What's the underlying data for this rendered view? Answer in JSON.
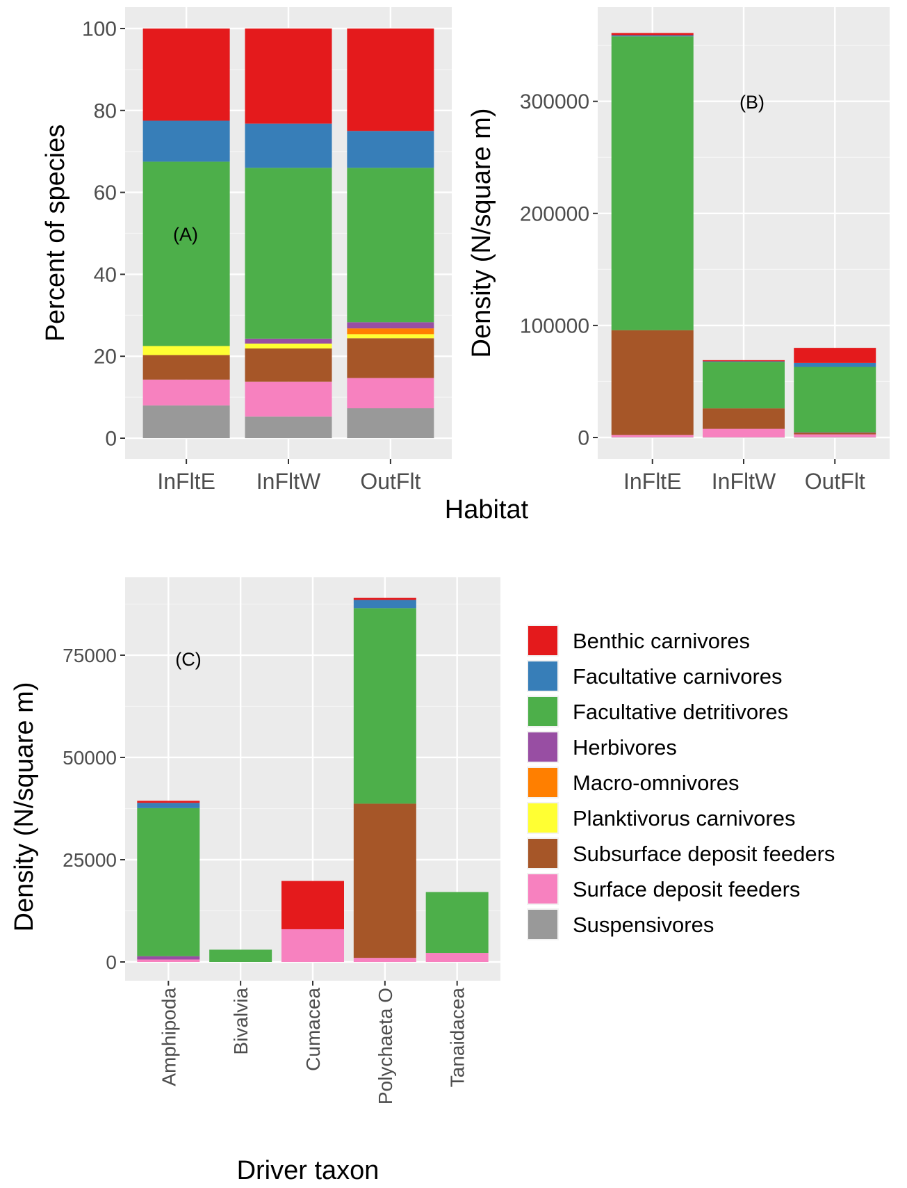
{
  "figure": {
    "habitat_label": "Habitat"
  },
  "colors": {
    "Benthic carnivores": "#e41a1c",
    "Facultative carnivores": "#377eb8",
    "Facultative detritivores": "#4daf4a",
    "Herbivores": "#984ea3",
    "Macro-omnivores": "#ff7f00",
    "Planktivorus carnivores": "#ffff33",
    "Subsurface deposit feeders": "#a65628",
    "Surface deposit feeders": "#f781bf",
    "Suspensivores": "#999999"
  },
  "legend": {
    "entries": [
      "Benthic carnivores",
      "Facultative carnivores",
      "Facultative detritivores",
      "Herbivores",
      "Macro-omnivores",
      "Planktivorus carnivores",
      "Subsurface deposit feeders",
      "Surface deposit feeders",
      "Suspensivores"
    ]
  },
  "chart_data": [
    {
      "id": "A",
      "panel_label": "(A)",
      "type": "bar",
      "stacked": true,
      "title": "",
      "xlabel": "Habitat",
      "ylabel": "Percent of species",
      "ylim": [
        0,
        100
      ],
      "yticks": [
        0,
        20,
        40,
        60,
        80,
        100
      ],
      "yticklabels": [
        "0",
        "20",
        "40",
        "60",
        "80",
        "100"
      ],
      "categories": [
        "InFltE",
        "InFltW",
        "OutFlt"
      ],
      "series": [
        {
          "name": "Suspensivores",
          "values": [
            8.0,
            5.3,
            7.3
          ]
        },
        {
          "name": "Surface deposit feeders",
          "values": [
            6.3,
            8.5,
            7.4
          ]
        },
        {
          "name": "Subsurface deposit feeders",
          "values": [
            6.0,
            8.1,
            9.7
          ]
        },
        {
          "name": "Planktivorus carnivores",
          "values": [
            2.2,
            1.2,
            1.0
          ]
        },
        {
          "name": "Macro-omnivores",
          "values": [
            0,
            0,
            1.4
          ]
        },
        {
          "name": "Herbivores",
          "values": [
            0,
            1.2,
            1.5
          ]
        },
        {
          "name": "Facultative detritivores",
          "values": [
            45.0,
            41.7,
            37.7
          ]
        },
        {
          "name": "Facultative carnivores",
          "values": [
            10.0,
            10.8,
            9.0
          ]
        },
        {
          "name": "Benthic carnivores",
          "values": [
            22.5,
            23.2,
            25.0
          ]
        }
      ]
    },
    {
      "id": "B",
      "panel_label": "(B)",
      "type": "bar",
      "stacked": true,
      "title": "",
      "xlabel": "Habitat",
      "ylabel": "Density (N/square m)",
      "ylim": [
        0,
        365000
      ],
      "yticks": [
        0,
        100000,
        200000,
        300000
      ],
      "yticklabels": [
        "0",
        "100000",
        "200000",
        "300000"
      ],
      "categories": [
        "InFltE",
        "InFltW",
        "OutFlt"
      ],
      "series": [
        {
          "name": "Suspensivores",
          "values": [
            300,
            200,
            300
          ]
        },
        {
          "name": "Surface deposit feeders",
          "values": [
            2000,
            7500,
            2500
          ]
        },
        {
          "name": "Subsurface deposit feeders",
          "values": [
            93500,
            18300,
            1500
          ]
        },
        {
          "name": "Planktivorus carnivores",
          "values": [
            0,
            0,
            0
          ]
        },
        {
          "name": "Macro-omnivores",
          "values": [
            0,
            0,
            0
          ]
        },
        {
          "name": "Herbivores",
          "values": [
            0,
            0,
            300
          ]
        },
        {
          "name": "Facultative detritivores",
          "values": [
            262200,
            41500,
            58400
          ]
        },
        {
          "name": "Facultative carnivores",
          "values": [
            1000,
            500,
            3500
          ]
        },
        {
          "name": "Benthic carnivores",
          "values": [
            2000,
            1000,
            13500
          ]
        }
      ]
    },
    {
      "id": "C",
      "panel_label": "(C)",
      "type": "bar",
      "stacked": true,
      "title": "",
      "xlabel": "Driver taxon",
      "ylabel": "Density (N/square m)",
      "ylim": [
        0,
        92000
      ],
      "yticks": [
        0,
        25000,
        50000,
        75000
      ],
      "yticklabels": [
        "0",
        "25000",
        "50000",
        "75000"
      ],
      "categories": [
        "Amphipoda",
        "Bivalvia",
        "Cumacea",
        "Polychaeta O",
        "Tanaidacea"
      ],
      "series": [
        {
          "name": "Suspensivores",
          "values": [
            0,
            0,
            0,
            0,
            0
          ]
        },
        {
          "name": "Surface deposit feeders",
          "values": [
            600,
            0,
            8000,
            1000,
            2200
          ]
        },
        {
          "name": "Subsurface deposit feeders",
          "values": [
            0,
            0,
            0,
            37700,
            0
          ]
        },
        {
          "name": "Planktivorus carnivores",
          "values": [
            0,
            0,
            0,
            0,
            0
          ]
        },
        {
          "name": "Macro-omnivores",
          "values": [
            0,
            0,
            0,
            0,
            0
          ]
        },
        {
          "name": "Herbivores",
          "values": [
            800,
            0,
            0,
            0,
            0
          ]
        },
        {
          "name": "Facultative detritivores",
          "values": [
            36200,
            3000,
            0,
            47800,
            14900
          ]
        },
        {
          "name": "Facultative carnivores",
          "values": [
            1300,
            0,
            0,
            2000,
            0
          ]
        },
        {
          "name": "Benthic carnivores",
          "values": [
            500,
            0,
            11800,
            500,
            0
          ]
        }
      ]
    }
  ]
}
